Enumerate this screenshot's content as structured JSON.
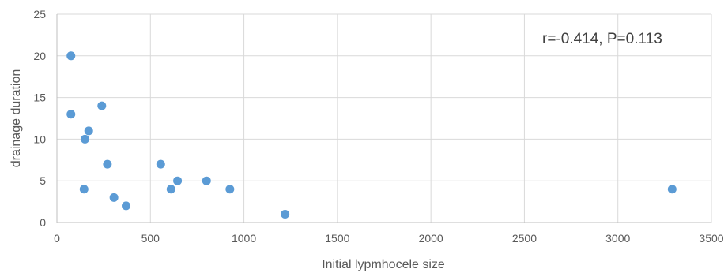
{
  "chart_data": {
    "type": "scatter",
    "title": "",
    "xlabel": "Initial lypmhocele size",
    "ylabel": "drainage duration",
    "xlim": [
      0,
      3500
    ],
    "ylim": [
      0,
      25
    ],
    "x_ticks": [
      "0",
      "500",
      "1000",
      "1500",
      "2000",
      "2500",
      "3000",
      "3500"
    ],
    "y_ticks": [
      "0",
      "5",
      "10",
      "15",
      "20",
      "25"
    ],
    "grid": true,
    "annotation": "r=-0.414, P=0.113",
    "point_color": "#5b9bd5",
    "points": [
      {
        "x": 75,
        "y": 20
      },
      {
        "x": 75,
        "y": 13
      },
      {
        "x": 150,
        "y": 10
      },
      {
        "x": 170,
        "y": 11
      },
      {
        "x": 145,
        "y": 4
      },
      {
        "x": 240,
        "y": 14
      },
      {
        "x": 270,
        "y": 7
      },
      {
        "x": 305,
        "y": 3
      },
      {
        "x": 370,
        "y": 2
      },
      {
        "x": 555,
        "y": 7
      },
      {
        "x": 610,
        "y": 4
      },
      {
        "x": 645,
        "y": 5
      },
      {
        "x": 800,
        "y": 5
      },
      {
        "x": 925,
        "y": 4
      },
      {
        "x": 1220,
        "y": 1
      },
      {
        "x": 3290,
        "y": 4
      }
    ]
  }
}
